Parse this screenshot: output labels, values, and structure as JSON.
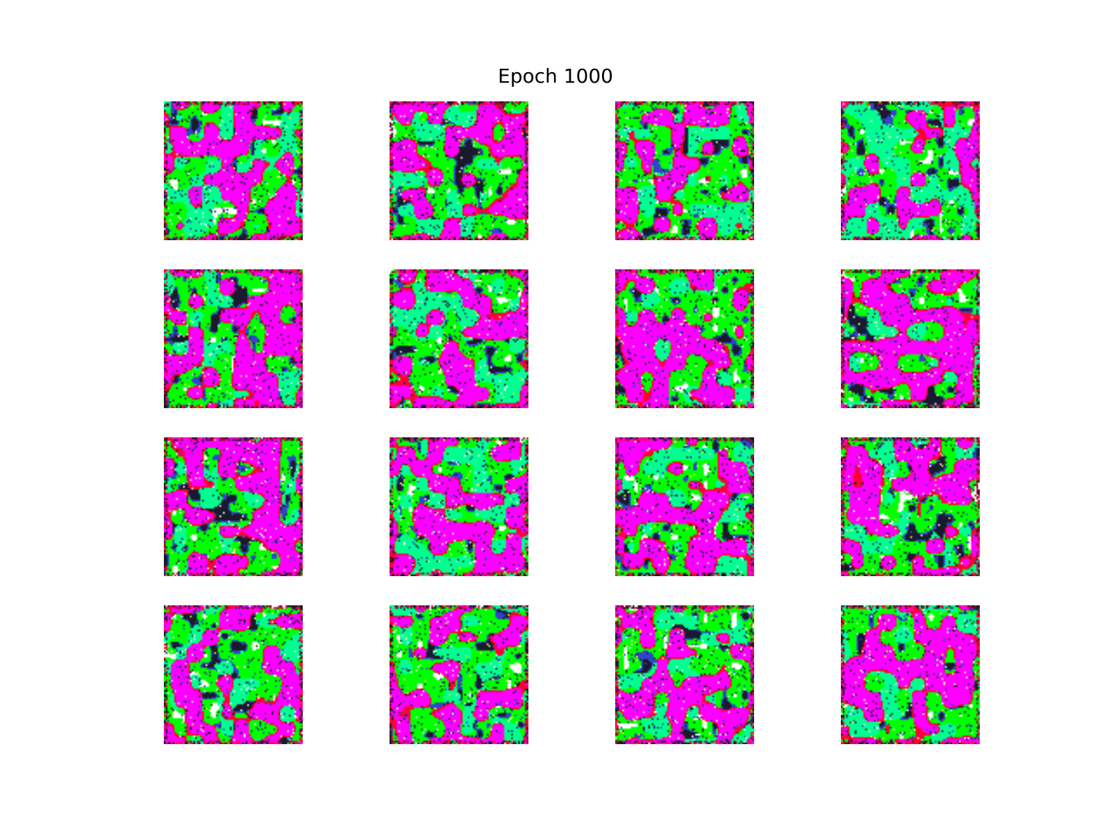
{
  "figure": {
    "title": "Epoch 1000"
  },
  "grid": {
    "rows": 4,
    "cols": 4,
    "palette": {
      "green": "#00ff00",
      "magenta": "#ff00ff",
      "spring_green": "#00ff90",
      "red": "#ff0033",
      "dark": "#1a1a2e",
      "blue": "#3344cc",
      "white": "#ffffff",
      "yellow": "#e8ff20"
    }
  }
}
